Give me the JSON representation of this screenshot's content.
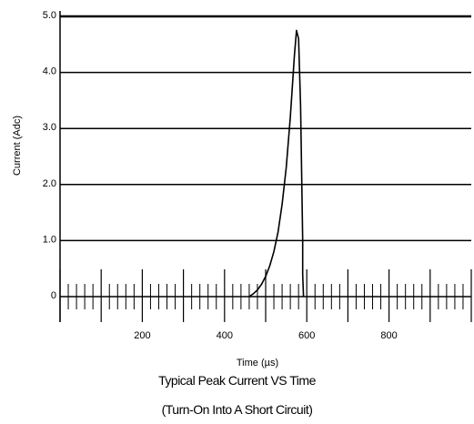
{
  "chart_data": {
    "type": "line",
    "title": "Typical Peak Current VS Time",
    "subtitle": "(Turn-On Into A Short Circuit)",
    "xlabel": "Time (µs)",
    "ylabel": "Current (Adc)",
    "xlim": [
      0,
      1000
    ],
    "ylim": [
      0,
      5.0
    ],
    "x_ticks": [
      200,
      400,
      600,
      800
    ],
    "y_ticks": [
      {
        "value": 0,
        "label": "0"
      },
      {
        "value": 1.0,
        "label": "1.0"
      },
      {
        "value": 2.0,
        "label": "2.0"
      },
      {
        "value": 3.0,
        "label": "3.0"
      },
      {
        "value": 4.0,
        "label": "4.0"
      },
      {
        "value": 5.0,
        "label": "5.0"
      }
    ],
    "grid": "horizontal",
    "series": [
      {
        "x": [
          460,
          470,
          480,
          490,
          500,
          510,
          520,
          530,
          540,
          550,
          560,
          570,
          575,
          580,
          585,
          590,
          590,
          592
        ],
        "y": [
          0.0,
          0.05,
          0.12,
          0.22,
          0.36,
          0.55,
          0.8,
          1.15,
          1.65,
          2.3,
          3.2,
          4.3,
          4.75,
          4.6,
          3.4,
          1.0,
          0.4,
          0.0
        ]
      }
    ]
  }
}
